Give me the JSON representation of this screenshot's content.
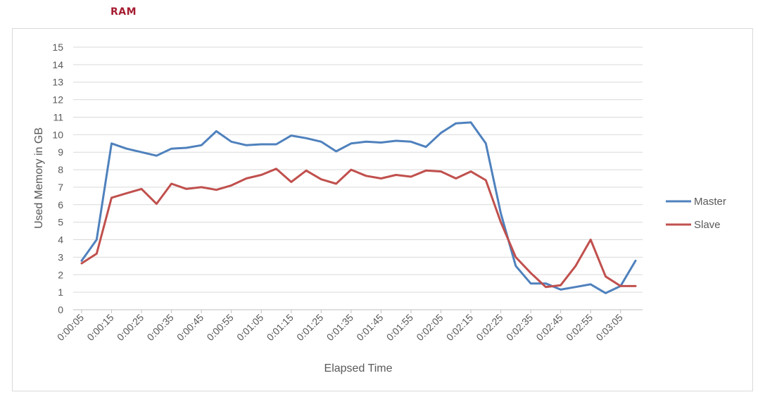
{
  "heading": "RAM",
  "chart_data": {
    "type": "line",
    "title": "",
    "xlabel": "Elapsed Time",
    "ylabel": "Used Memory in GB",
    "ylim": [
      0,
      15
    ],
    "yticks": [
      0,
      1,
      2,
      3,
      4,
      5,
      6,
      7,
      8,
      9,
      10,
      11,
      12,
      13,
      14,
      15
    ],
    "grid": true,
    "legend_position": "right",
    "x": [
      "0:00:05",
      "0:00:10",
      "0:00:15",
      "0:00:20",
      "0:00:25",
      "0:00:30",
      "0:00:35",
      "0:00:40",
      "0:00:45",
      "0:00:50",
      "0:00:55",
      "0:01:00",
      "0:01:05",
      "0:01:10",
      "0:01:15",
      "0:01:20",
      "0:01:25",
      "0:01:30",
      "0:01:35",
      "0:01:40",
      "0:01:45",
      "0:01:50",
      "0:01:55",
      "0:02:00",
      "0:02:05",
      "0:02:10",
      "0:02:15",
      "0:02:20",
      "0:02:25",
      "0:02:30",
      "0:02:35",
      "0:02:40",
      "0:02:45",
      "0:02:50",
      "0:02:55",
      "0:03:00",
      "0:03:05",
      "0:03:10"
    ],
    "xtick_labels": [
      "0:00:05",
      "0:00:15",
      "0:00:25",
      "0:00:35",
      "0:00:45",
      "0:00:55",
      "0:01:05",
      "0:01:15",
      "0:01:25",
      "0:01:35",
      "0:01:45",
      "0:01:55",
      "0:02:05",
      "0:02:15",
      "0:02:25",
      "0:02:35",
      "0:02:45",
      "0:02:55",
      "0:03:05"
    ],
    "series": [
      {
        "name": "Master",
        "color": "#4f81bd",
        "values": [
          2.8,
          4.0,
          9.5,
          9.2,
          9.0,
          8.8,
          9.2,
          9.25,
          9.4,
          10.2,
          9.6,
          9.4,
          9.45,
          9.45,
          9.95,
          9.8,
          9.6,
          9.05,
          9.5,
          9.6,
          9.55,
          9.65,
          9.6,
          9.3,
          10.1,
          10.65,
          10.7,
          9.5,
          5.5,
          2.5,
          1.5,
          1.5,
          1.15,
          1.3,
          1.45,
          0.95,
          1.35,
          2.8
        ]
      },
      {
        "name": "Slave",
        "color": "#c0504d",
        "values": [
          2.65,
          3.2,
          6.4,
          6.65,
          6.9,
          6.05,
          7.2,
          6.9,
          7.0,
          6.85,
          7.1,
          7.5,
          7.7,
          8.05,
          7.3,
          7.95,
          7.45,
          7.2,
          8.0,
          7.65,
          7.5,
          7.7,
          7.6,
          7.95,
          7.9,
          7.5,
          7.9,
          7.4,
          5.0,
          3.0,
          2.1,
          1.3,
          1.4,
          2.5,
          4.0,
          1.9,
          1.35,
          1.35
        ]
      }
    ]
  }
}
